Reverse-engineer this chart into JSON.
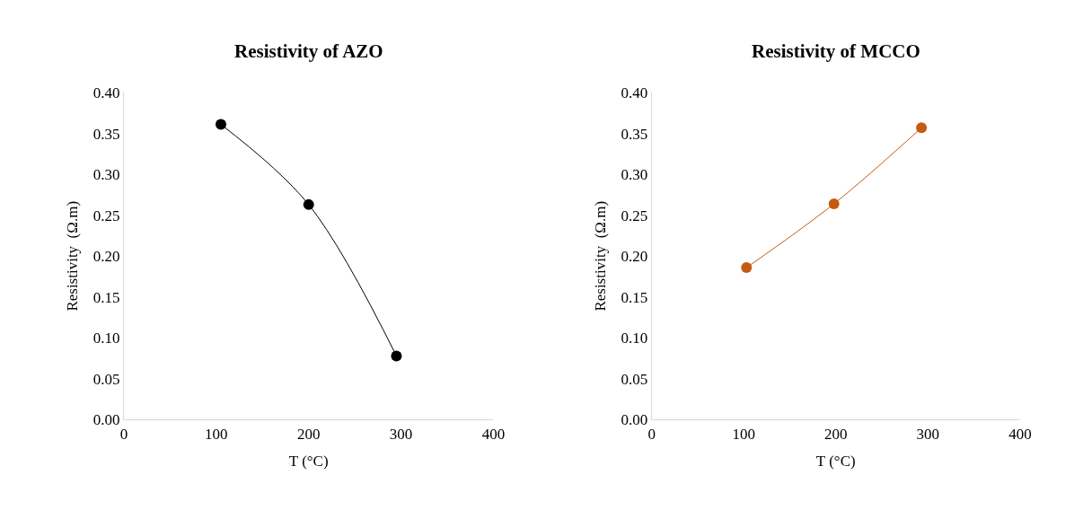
{
  "chart_data": [
    {
      "type": "line",
      "title": "Resistivity of AZO",
      "xlabel": "T (°C)",
      "ylabel": "Resistivity  (Ω.m)",
      "x": [
        105,
        200,
        295
      ],
      "series": [
        {
          "color": "#000000",
          "values": [
            0.361,
            0.263,
            0.078
          ]
        }
      ],
      "xlim": [
        0,
        400
      ],
      "xticks": [
        0,
        100,
        200,
        300,
        400
      ],
      "ylim": [
        0,
        0.4
      ],
      "yticks": [
        {
          "value": 0,
          "label": "0.00"
        },
        {
          "value": 0.05,
          "label": "0.05"
        },
        {
          "value": 0.1,
          "label": "0.10"
        },
        {
          "value": 0.15,
          "label": "0.15"
        },
        {
          "value": 0.2,
          "label": "0.20"
        },
        {
          "value": 0.25,
          "label": "0.25"
        },
        {
          "value": 0.3,
          "label": "0.30"
        },
        {
          "value": 0.35,
          "label": "0.35"
        },
        {
          "value": 0.4,
          "label": "0.40"
        }
      ],
      "marker": "circle",
      "line_style": "solid"
    },
    {
      "type": "line",
      "title": "Resistivity of MCCO",
      "xlabel": "T (°C)",
      "ylabel": "Resistivity  (Ω.m)",
      "x": [
        103,
        198,
        293
      ],
      "series": [
        {
          "color": "#c55a11",
          "values": [
            0.186,
            0.264,
            0.357
          ]
        }
      ],
      "xlim": [
        0,
        400
      ],
      "xticks": [
        0,
        100,
        200,
        300,
        400
      ],
      "ylim": [
        0,
        0.4
      ],
      "yticks": [
        {
          "value": 0,
          "label": "0.00"
        },
        {
          "value": 0.05,
          "label": "0.05"
        },
        {
          "value": 0.1,
          "label": "0.10"
        },
        {
          "value": 0.15,
          "label": "0.15"
        },
        {
          "value": 0.2,
          "label": "0.20"
        },
        {
          "value": 0.25,
          "label": "0.25"
        },
        {
          "value": 0.3,
          "label": "0.30"
        },
        {
          "value": 0.35,
          "label": "0.35"
        },
        {
          "value": 0.4,
          "label": "0.40"
        }
      ],
      "marker": "circle",
      "line_style": "solid"
    }
  ]
}
